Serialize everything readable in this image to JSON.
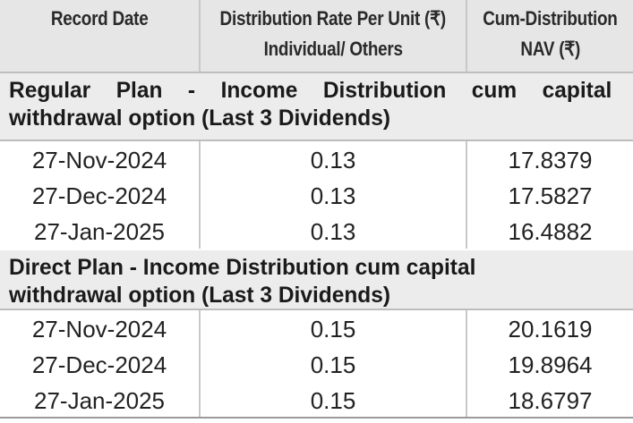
{
  "table": {
    "headers": {
      "record_date": "Record Date",
      "rate_line1": "Distribution Rate Per Unit  (₹)",
      "rate_line2": "Individual/ Others",
      "nav_line1": "Cum-Distribution",
      "nav_line2": "NAV (₹)"
    },
    "sections": [
      {
        "title_line1": "Regular Plan - Income Distribution cum capital",
        "title_line2": "withdrawal option (Last 3 Dividends)",
        "rows": [
          {
            "date": "27-Nov-2024",
            "rate": "0.13",
            "nav": "17.8379"
          },
          {
            "date": "27-Dec-2024",
            "rate": "0.13",
            "nav": "17.5827"
          },
          {
            "date": "27-Jan-2025",
            "rate": "0.13",
            "nav": "16.4882"
          }
        ]
      },
      {
        "title_line1": "Direct Plan - Income Distribution cum capital",
        "title_line2": "withdrawal option (Last 3 Dividends)",
        "rows": [
          {
            "date": "27-Nov-2024",
            "rate": "0.15",
            "nav": "20.1619"
          },
          {
            "date": "27-Dec-2024",
            "rate": "0.15",
            "nav": "19.8964"
          },
          {
            "date": "27-Jan-2025",
            "rate": "0.15",
            "nav": "18.6797"
          }
        ]
      }
    ]
  },
  "colors": {
    "header_bg": "#e6e6e6",
    "section_bg": "#ececec",
    "text": "#1a1a1a"
  }
}
